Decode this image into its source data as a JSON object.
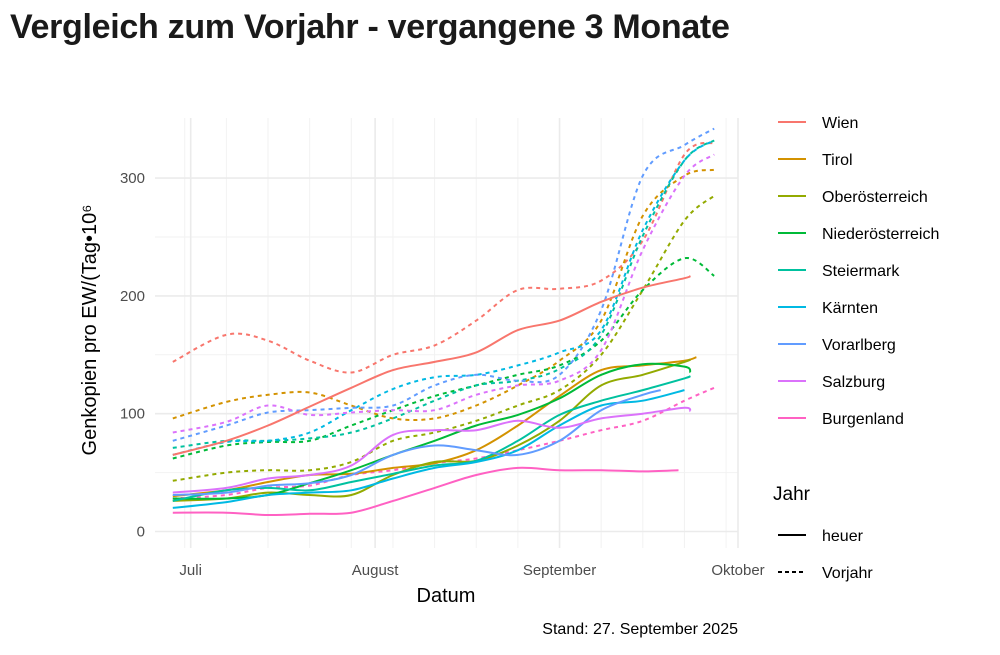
{
  "title": "Vergleich zum Vorjahr - vergangene 3 Monate",
  "caption": "Stand: 27. September 2025",
  "chart_data": {
    "type": "line",
    "title": "Vergleich zum Vorjahr - vergangene 3 Monate",
    "xlabel": "Datum",
    "ylabel": "Genkopien pro EW/(Tag•10⁶",
    "xlim": [
      "2025-06-25",
      "2025-10-01"
    ],
    "ylim": [
      -14,
      351
    ],
    "yticks": [
      0,
      100,
      200,
      300
    ],
    "xticks": [
      {
        "date": "2025-07-01",
        "label": "Juli"
      },
      {
        "date": "2025-08-01",
        "label": "August"
      },
      {
        "date": "2025-09-01",
        "label": "September"
      },
      {
        "date": "2025-10-01",
        "label": "Oktober"
      }
    ],
    "grid": true,
    "legend_position": "right",
    "legend_color_title": "",
    "legend_linetype_title": "Jahr",
    "linetypes": [
      {
        "label": "heuer",
        "dash": "solid"
      },
      {
        "label": "Vorjahr",
        "dash": "dashed"
      }
    ],
    "x": [
      "2025-06-28",
      "2025-07-07",
      "2025-07-14",
      "2025-07-21",
      "2025-07-28",
      "2025-08-04",
      "2025-08-11",
      "2025-08-18",
      "2025-08-25",
      "2025-09-01",
      "2025-09-08",
      "2025-09-15",
      "2025-09-22"
    ],
    "series": [
      {
        "name": "Wien",
        "color": "#F8766D",
        "heuer": [
          65,
          77,
          90,
          106,
          122,
          137,
          144,
          152,
          171,
          179,
          195,
          207,
          215
        ],
        "heuer_end": [
          "2025-09-23",
          217
        ],
        "vorjahr": [
          144,
          167,
          162,
          145,
          135,
          150,
          158,
          179,
          205,
          206,
          213,
          247,
          320
        ],
        "vorjahr_end": [
          "2025-09-27",
          330
        ]
      },
      {
        "name": "Tirol",
        "color": "#D39200",
        "heuer": [
          30,
          35,
          42,
          48,
          49,
          54,
          58,
          69,
          90,
          115,
          137,
          141,
          145
        ],
        "heuer_end": [
          "2025-09-24",
          148
        ],
        "vorjahr": [
          96,
          110,
          116,
          118,
          107,
          96,
          96,
          107,
          124,
          145,
          179,
          268,
          302
        ],
        "vorjahr_end": [
          "2025-09-27",
          307
        ]
      },
      {
        "name": "Oberösterreich",
        "color": "#93AA00",
        "heuer": [
          26,
          28,
          33,
          31,
          31,
          48,
          59,
          60,
          73,
          94,
          124,
          133,
          144
        ],
        "heuer_end": [
          "2025-09-23",
          146
        ],
        "vorjahr": [
          43,
          50,
          52,
          52,
          59,
          77,
          84,
          94,
          107,
          120,
          150,
          205,
          264
        ],
        "vorjahr_end": [
          "2025-09-27",
          285
        ]
      },
      {
        "name": "Niederösterreich",
        "color": "#00BA38",
        "heuer": [
          28,
          28,
          31,
          41,
          52,
          65,
          77,
          90,
          99,
          113,
          133,
          142,
          140
        ],
        "heuer_end": [
          "2025-09-23",
          135
        ],
        "vorjahr": [
          62,
          73,
          76,
          77,
          90,
          103,
          115,
          124,
          133,
          141,
          162,
          205,
          232
        ],
        "vorjahr_end": [
          "2025-09-27",
          217
        ]
      },
      {
        "name": "Steiermark",
        "color": "#00C19F",
        "heuer": [
          26,
          35,
          37,
          35,
          42,
          49,
          56,
          60,
          77,
          99,
          111,
          120,
          130
        ],
        "heuer_end": [
          "2025-09-23",
          132
        ],
        "vorjahr": [
          71,
          77,
          77,
          79,
          84,
          96,
          111,
          124,
          128,
          138,
          167,
          251,
          315
        ],
        "vorjahr_end": [
          "2025-09-27",
          332
        ]
      },
      {
        "name": "Kärnten",
        "color": "#00B9E3",
        "heuer": [
          20,
          25,
          31,
          33,
          35,
          45,
          54,
          59,
          69,
          90,
          107,
          111,
          120
        ],
        "heuer_end": null,
        "vorjahr": [
          65,
          76,
          77,
          84,
          103,
          121,
          131,
          133,
          141,
          152,
          171,
          256,
          315
        ],
        "vorjahr_end": [
          "2025-09-27",
          332
        ]
      },
      {
        "name": "Vorarlberg",
        "color": "#619CFF",
        "heuer": [
          31,
          33,
          39,
          41,
          48,
          65,
          73,
          69,
          65,
          77,
          103,
          116
        ],
        "heuer_end": [
          "2025-09-18",
          120
        ],
        "vorjahr": [
          77,
          90,
          101,
          103,
          105,
          107,
          124,
          133,
          128,
          133,
          188,
          302,
          328
        ],
        "vorjahr_end": [
          "2025-09-27",
          342
        ]
      },
      {
        "name": "Salzburg",
        "color": "#DB72FB",
        "heuer": [
          33,
          37,
          45,
          48,
          56,
          82,
          86,
          86,
          94,
          88,
          96,
          100,
          105
        ],
        "heuer_end": [
          "2025-09-23",
          102
        ],
        "vorjahr": [
          84,
          93,
          107,
          99,
          101,
          103,
          103,
          116,
          124,
          128,
          154,
          239,
          302
        ],
        "vorjahr_end": [
          "2025-09-27",
          320
        ]
      },
      {
        "name": "Burgenland",
        "color": "#FF61C3",
        "heuer": [
          16,
          16,
          14,
          15,
          16,
          26,
          37,
          48,
          54,
          52,
          52,
          51
        ],
        "heuer_end": [
          "2025-09-21",
          52
        ],
        "vorjahr": [
          28,
          31,
          37,
          39,
          48,
          52,
          58,
          62,
          69,
          77,
          86,
          94,
          111
        ],
        "vorjahr_end": [
          "2025-09-27",
          122
        ]
      }
    ]
  }
}
